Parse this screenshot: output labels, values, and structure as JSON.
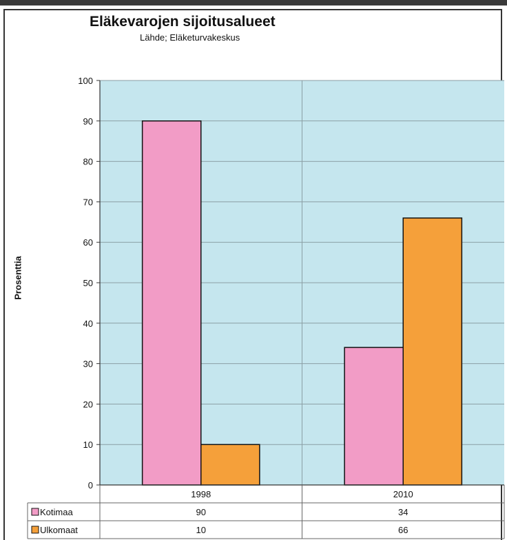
{
  "chart_data": {
    "type": "bar",
    "title": "Eläkevarojen sijoitusalueet",
    "subtitle": "Lähde; Eläketurvakeskus",
    "ylabel": "Prosenttia",
    "xlabel": "",
    "categories": [
      "1998",
      "2010"
    ],
    "series": [
      {
        "name": "Kotimaa",
        "values": [
          90,
          34
        ],
        "color": "#f29cc6"
      },
      {
        "name": "Ulkomaat",
        "values": [
          10,
          66
        ],
        "color": "#f5a03a"
      }
    ],
    "ylim": [
      0,
      100
    ],
    "yticks": [
      0,
      10,
      20,
      30,
      40,
      50,
      60,
      70,
      80,
      90,
      100
    ],
    "plot_background": "#c5e6ee",
    "grid": true,
    "data_table": true
  }
}
